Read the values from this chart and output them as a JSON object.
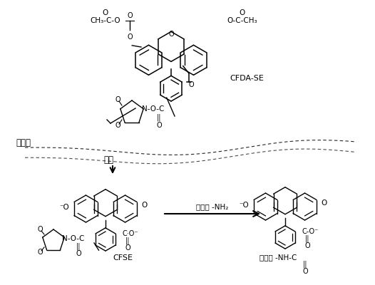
{
  "background_color": "#ffffff",
  "fig_width": 5.26,
  "fig_height": 4.0,
  "dpi": 100,
  "texts": {
    "cfda_se": "CFDA-SE",
    "cfse": "CFSE",
    "cell_membrane": "细胞膜",
    "esterase": "酯酶",
    "protein_nh2": "蛋白质 -NH₂",
    "protein_nhc": "蛋白质 -NH-C",
    "top_left_o": "O",
    "top_right_o": "O",
    "ch3co_left": "CH₃-C-O",
    "och3c_right": "O-C-CH₃"
  },
  "colors": {
    "black": "#000000",
    "white": "#ffffff"
  }
}
